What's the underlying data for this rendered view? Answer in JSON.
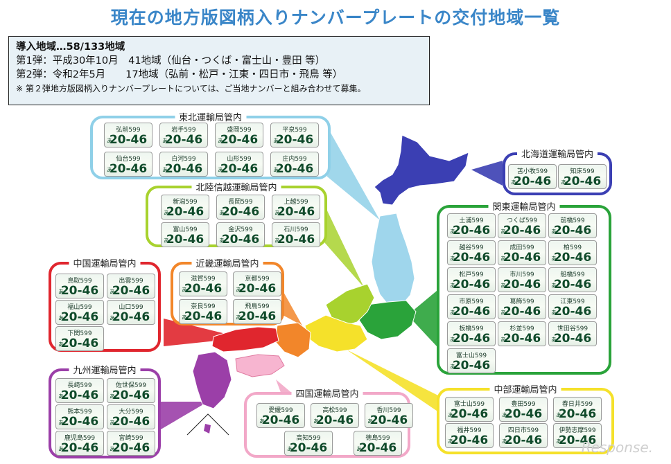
{
  "title": "現在の地方版図柄入りナンバープレートの交付地域一覧",
  "info": {
    "line1": "導入地域…58/133地域",
    "line2": "第1弾：平成30年10月　41地域（仙台・つくば・富士山・豊田 等）",
    "line3": "第2弾：令和2年5月　　17地域（弘前・松戸・江東・四日市・飛鳥 等）",
    "note": "※ 第２弾地方版図柄入りナンバープレートについては、ご当地ナンバーと組み合わせて募集。"
  },
  "plate_number": "20-46",
  "plate_kana": "あ",
  "regions": {
    "tohoku": {
      "title": "東北運輸局管内",
      "color": "#8fd0e8",
      "plates": [
        "弘前599",
        "岩手599",
        "盛岡599",
        "平泉599",
        "仙台599",
        "白河599",
        "山形599",
        "庄内599"
      ]
    },
    "hokkaido": {
      "title": "北海道運輸局管内",
      "color": "#3b3fb3",
      "plates": [
        "苫小牧599",
        "知床599"
      ]
    },
    "hokuriku": {
      "title": "北陸信越運輸局管内",
      "color": "#a8d22e",
      "plates": [
        "新潟599",
        "長岡599",
        "上越599",
        "富山599",
        "金沢599",
        "石川599"
      ]
    },
    "kanto": {
      "title": "関東運輸局管内",
      "color": "#2aa33a",
      "plates": [
        "土浦599",
        "つくば599",
        "前橋599",
        "越谷599",
        "成田599",
        "柏599",
        "松戸599",
        "市川599",
        "船橋599",
        "市原599",
        "葛飾599",
        "江東599",
        "板橋599",
        "杉並599",
        "世田谷599",
        "富士山599"
      ]
    },
    "chugoku": {
      "title": "中国運輸局管内",
      "color": "#e0262e",
      "plates": [
        "鳥取599",
        "出雲599",
        "福山599",
        "山口599",
        "下関599"
      ]
    },
    "kinki": {
      "title": "近畿運輸局管内",
      "color": "#f2862a",
      "plates": [
        "滋賀599",
        "京都599",
        "奈良599",
        "飛鳥599"
      ]
    },
    "kyushu": {
      "title": "九州運輸局管内",
      "color": "#9b3fa8",
      "plates": [
        "長崎599",
        "佐世保599",
        "熊本599",
        "大分599",
        "鹿児島599",
        "宮崎599"
      ]
    },
    "shikoku": {
      "title": "四国運輸局管内",
      "color": "#f2a8c8",
      "plates": [
        "愛媛599",
        "高松599",
        "香川599",
        "高知599",
        "徳島599"
      ]
    },
    "chubu": {
      "title": "中部運輸局管内",
      "color": "#f5e12a",
      "plates": [
        "富士山599",
        "豊田599",
        "春日井599",
        "福井599",
        "四日市599",
        "伊勢志摩599"
      ]
    }
  },
  "watermark": "Response."
}
